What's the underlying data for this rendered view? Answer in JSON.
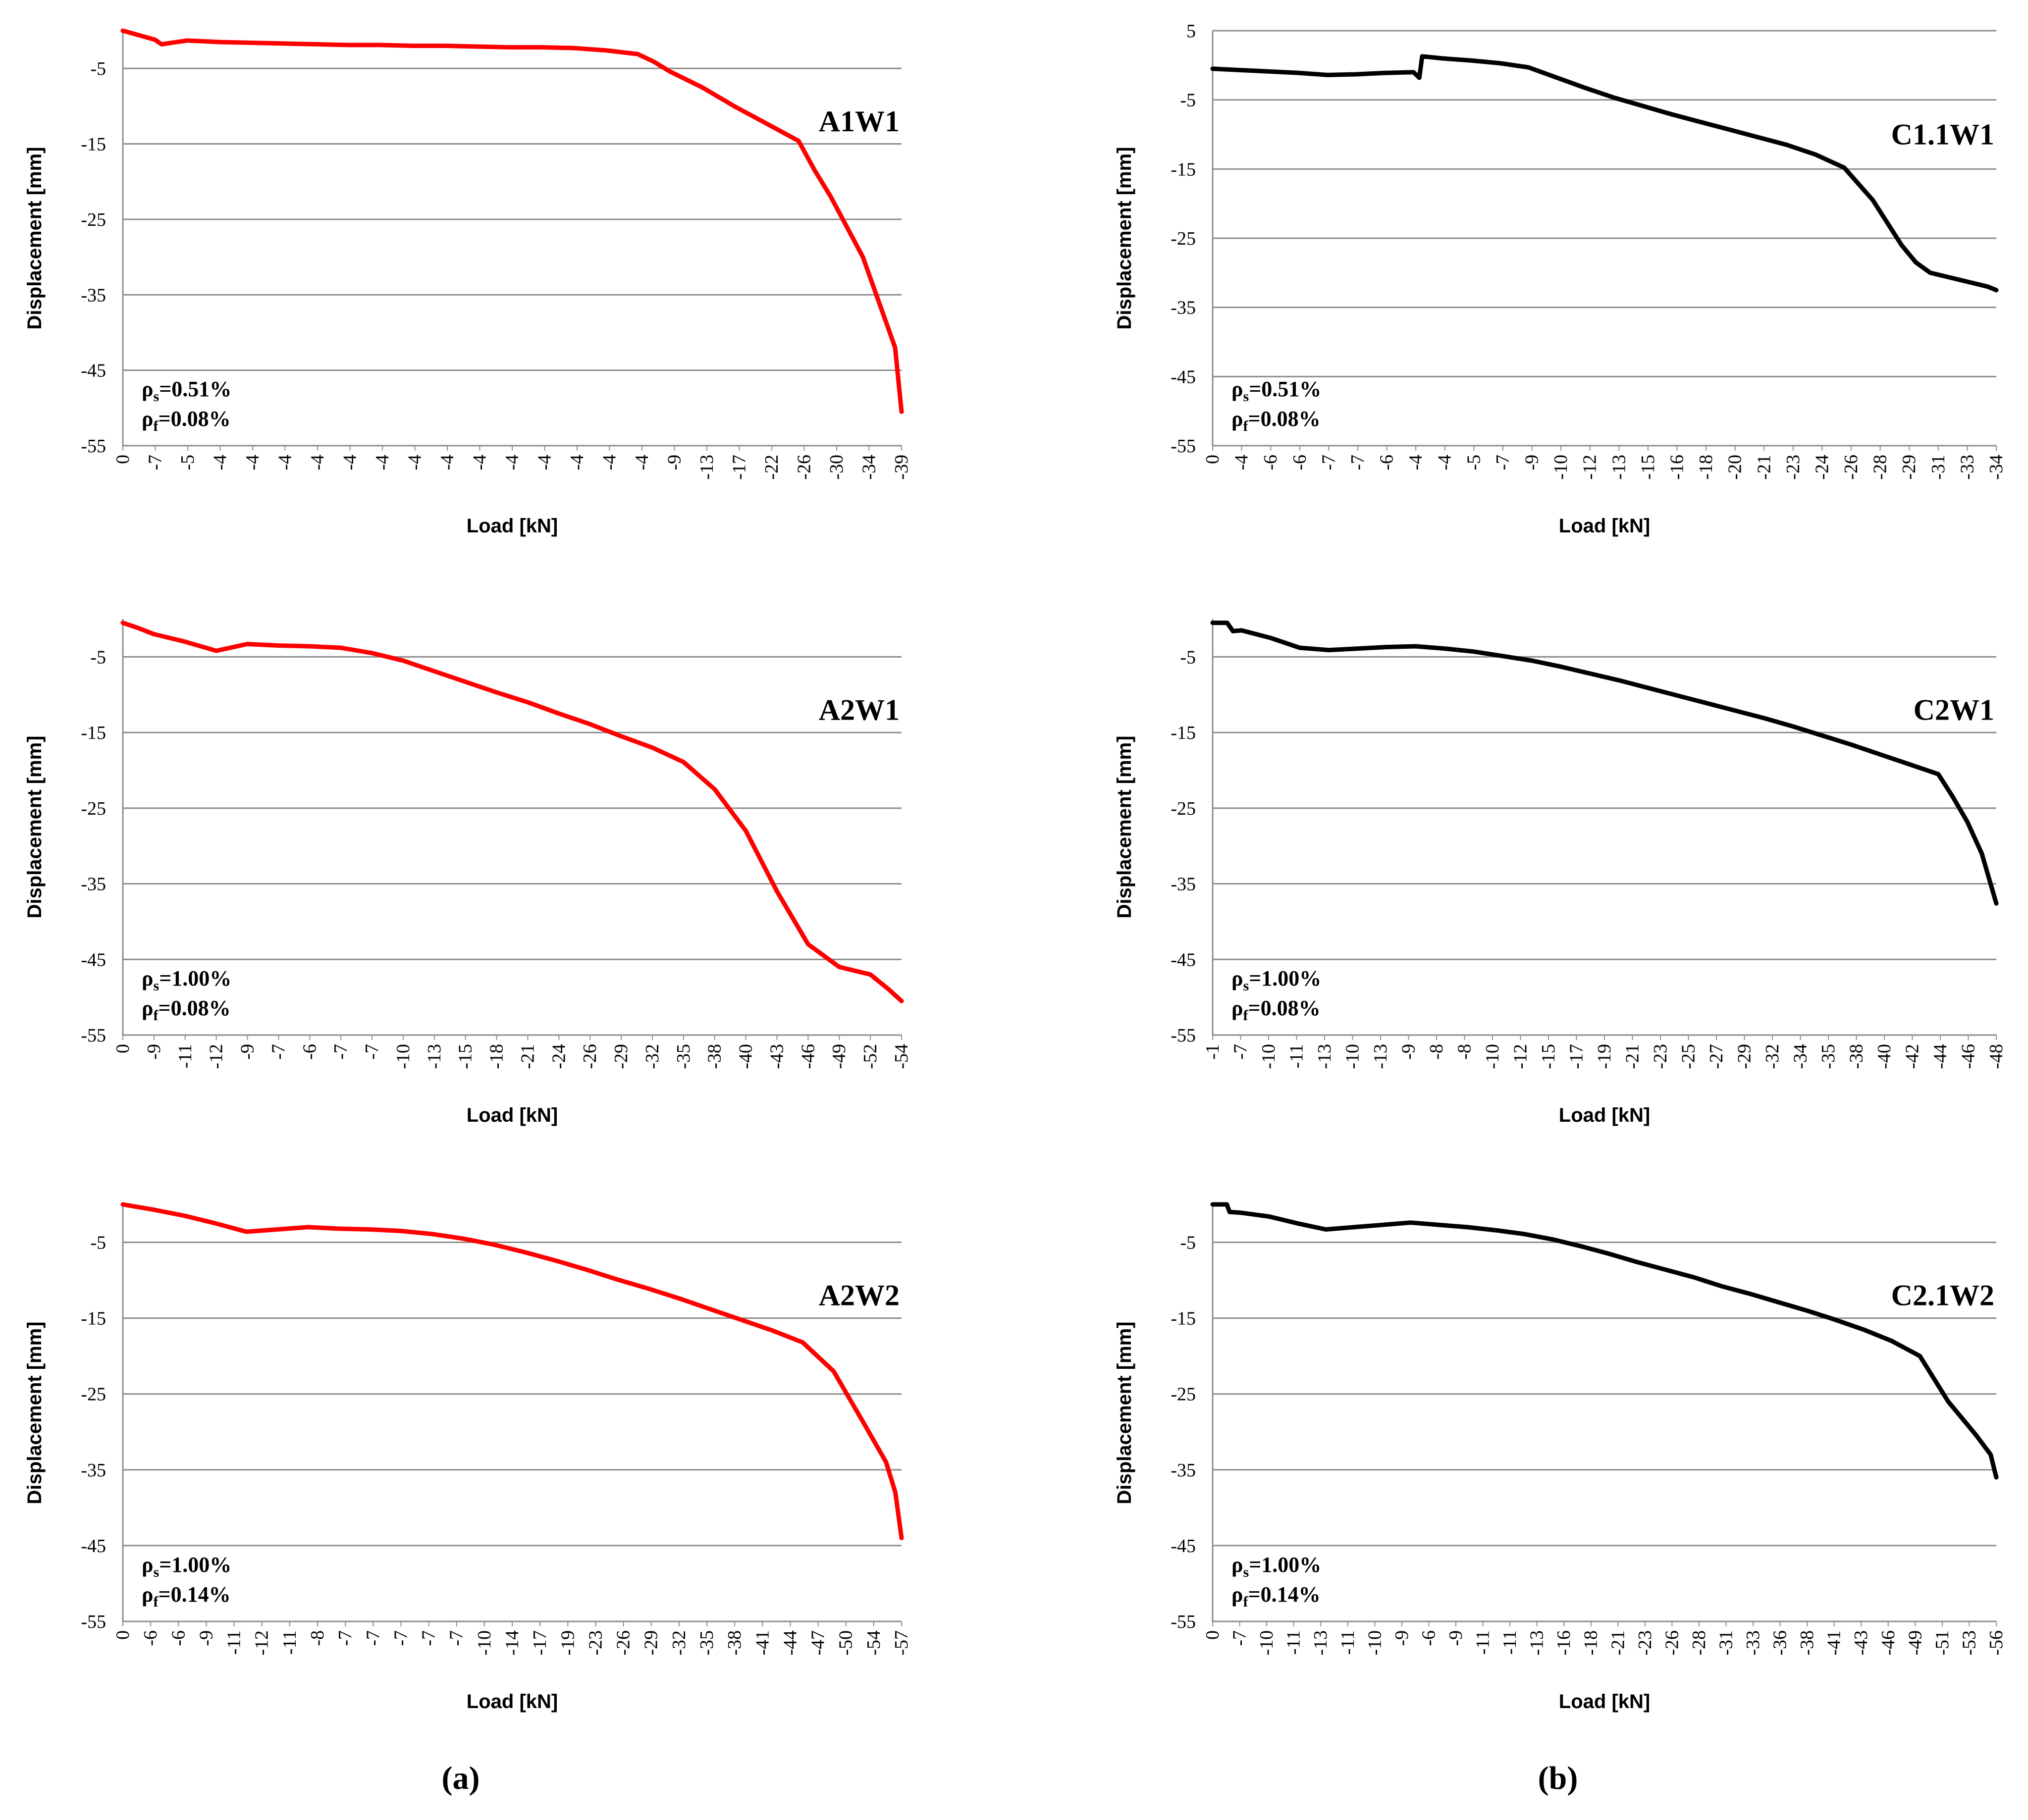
{
  "panel_labels": [
    "(a)",
    "(b)"
  ],
  "chart_data": [
    {
      "type": "line",
      "name": "A1W1",
      "color": "#ff0000",
      "xlabel": "Load [kN]",
      "ylabel": "Displacement [mm]",
      "ylim": [
        -55,
        0
      ],
      "yticks": [
        -5,
        -15,
        -25,
        -35,
        -45,
        -55
      ],
      "x_tick_labels": [
        "0",
        "-7",
        "-5",
        "-4",
        "-4",
        "-4",
        "-4",
        "-4",
        "-4",
        "-4",
        "-4",
        "-4",
        "-4",
        "-4",
        "-4",
        "-4",
        "-4",
        "-9",
        "-13",
        "-17",
        "-22",
        "-26",
        "-30",
        "-34",
        "-39"
      ],
      "rho_s": "0.51%",
      "rho_f": "0.08%",
      "series": [
        {
          "name": "A1W1",
          "x": [
            0,
            0.5,
            1,
            1.2,
            2,
            3,
            4,
            5,
            6,
            7,
            8,
            9,
            10,
            11,
            12,
            13,
            14,
            15,
            16,
            16.5,
            17,
            18,
            19,
            20,
            21,
            21.5,
            22,
            23,
            24,
            24.2
          ],
          "y": [
            0,
            -0.6,
            -1.2,
            -1.8,
            -1.3,
            -1.5,
            -1.6,
            -1.7,
            -1.8,
            -1.9,
            -1.9,
            -2.0,
            -2.0,
            -2.1,
            -2.2,
            -2.2,
            -2.3,
            -2.6,
            -3.1,
            -4.1,
            -5.4,
            -7.5,
            -10,
            -12.3,
            -14.6,
            -18.5,
            -22,
            -30,
            -42,
            -50.5
          ]
        }
      ]
    },
    {
      "type": "line",
      "name": "C1.1W1",
      "color": "#000000",
      "xlabel": "Load [kN]",
      "ylabel": "Displacement [mm]",
      "ylim": [
        -55,
        5
      ],
      "yticks": [
        5,
        -5,
        -15,
        -25,
        -35,
        -45,
        -55
      ],
      "x_tick_labels": [
        "0",
        "-4",
        "-6",
        "-6",
        "-7",
        "-7",
        "-6",
        "-4",
        "-4",
        "-5",
        "-7",
        "-9",
        "-10",
        "-12",
        "-13",
        "-15",
        "-16",
        "-18",
        "-20",
        "-21",
        "-23",
        "-24",
        "-26",
        "-28",
        "-29",
        "-31",
        "-33",
        "-34"
      ],
      "rho_s": "0.51%",
      "rho_f": "0.08%",
      "series": [
        {
          "name": "C1.1W1",
          "x": [
            0,
            1,
            2,
            3,
            4,
            5,
            6,
            7,
            7.2,
            7.3,
            8,
            9,
            10,
            11,
            12,
            13,
            14,
            15,
            16,
            17,
            18,
            19,
            20,
            21,
            22,
            23,
            24,
            24.5,
            25,
            26,
            27,
            27.3
          ],
          "y": [
            -0.5,
            -0.7,
            -0.9,
            -1.1,
            -1.4,
            -1.3,
            -1.1,
            -1.0,
            -1.8,
            1.3,
            1.0,
            0.7,
            0.3,
            -0.3,
            -1.8,
            -3.3,
            -4.7,
            -5.9,
            -7.1,
            -8.2,
            -9.3,
            -10.4,
            -11.5,
            -12.9,
            -14.8,
            -19.5,
            -26,
            -28.5,
            -30,
            -31,
            -32,
            -32.5
          ]
        }
      ]
    },
    {
      "type": "line",
      "name": "A2W1",
      "color": "#ff0000",
      "xlabel": "Load [kN]",
      "ylabel": "Displacement [mm]",
      "ylim": [
        -55,
        0
      ],
      "yticks": [
        -5,
        -15,
        -25,
        -35,
        -45,
        -55
      ],
      "x_tick_labels": [
        "0",
        "-9",
        "-11",
        "-12",
        "-9",
        "-7",
        "-6",
        "-7",
        "-7",
        "-10",
        "-13",
        "-15",
        "-18",
        "-21",
        "-24",
        "-26",
        "-29",
        "-32",
        "-35",
        "-38",
        "-40",
        "-43",
        "-46",
        "-49",
        "-52",
        "-54"
      ],
      "rho_s": "1.00%",
      "rho_f": "0.08%",
      "series": [
        {
          "name": "A2W1",
          "x": [
            0,
            0.5,
            1,
            2,
            3,
            4,
            5,
            6,
            7,
            8,
            9,
            10,
            11,
            12,
            13,
            14,
            15,
            16,
            17,
            18,
            19,
            20,
            21,
            22,
            23,
            24,
            24.6,
            25
          ],
          "y": [
            -0.5,
            -1.2,
            -2.0,
            -3.0,
            -4.2,
            -3.3,
            -3.5,
            -3.6,
            -3.8,
            -4.5,
            -5.5,
            -6.9,
            -8.3,
            -9.7,
            -11.0,
            -12.5,
            -13.9,
            -15.5,
            -17.0,
            -18.9,
            -22.5,
            -28,
            -36,
            -43,
            -46,
            -47,
            -49,
            -50.5
          ]
        }
      ]
    },
    {
      "type": "line",
      "name": "C2W1",
      "color": "#000000",
      "xlabel": "Load [kN]",
      "ylabel": "Displacement [mm]",
      "ylim": [
        -55,
        0
      ],
      "yticks": [
        -5,
        -15,
        -25,
        -35,
        -45,
        -55
      ],
      "x_tick_labels": [
        "-1",
        "-7",
        "-10",
        "-11",
        "-13",
        "-10",
        "-13",
        "-9",
        "-8",
        "-8",
        "-10",
        "-12",
        "-15",
        "-17",
        "-19",
        "-21",
        "-23",
        "-25",
        "-27",
        "-29",
        "-32",
        "-34",
        "-35",
        "-38",
        "-40",
        "-42",
        "-44",
        "-46",
        "-48"
      ],
      "rho_s": "1.00%",
      "rho_f": "0.08%",
      "series": [
        {
          "name": "C2W1",
          "x": [
            0,
            0.5,
            0.7,
            1,
            2,
            3,
            4,
            5,
            6,
            7,
            8,
            9,
            10,
            11,
            12,
            13,
            14,
            15,
            16,
            17,
            18,
            19,
            20,
            21,
            22,
            23,
            24,
            25,
            25.5,
            26,
            26.5,
            27
          ],
          "y": [
            -0.5,
            -0.5,
            -1.6,
            -1.5,
            -2.5,
            -3.8,
            -4.1,
            -3.9,
            -3.7,
            -3.6,
            -3.9,
            -4.3,
            -4.9,
            -5.5,
            -6.3,
            -7.2,
            -8.1,
            -9.1,
            -10.1,
            -11.1,
            -12.1,
            -13.1,
            -14.2,
            -15.4,
            -16.6,
            -17.9,
            -19.2,
            -20.5,
            -23.5,
            -26.8,
            -31,
            -37.6
          ]
        }
      ]
    },
    {
      "type": "line",
      "name": "A2W2",
      "color": "#ff0000",
      "xlabel": "Load [kN]",
      "ylabel": "Displacement [mm]",
      "ylim": [
        -55,
        0
      ],
      "yticks": [
        -5,
        -15,
        -25,
        -35,
        -45,
        -55
      ],
      "x_tick_labels": [
        "0",
        "-6",
        "-6",
        "-9",
        "-11",
        "-12",
        "-11",
        "-8",
        "-7",
        "-7",
        "-7",
        "-7",
        "-7",
        "-10",
        "-14",
        "-17",
        "-19",
        "-23",
        "-26",
        "-29",
        "-32",
        "-35",
        "-38",
        "-41",
        "-44",
        "-47",
        "-50",
        "-54",
        "-57"
      ],
      "rho_s": "1.00%",
      "rho_f": "0.14%",
      "series": [
        {
          "name": "A2W2",
          "x": [
            0,
            1,
            2,
            3,
            4,
            5,
            6,
            7,
            8,
            9,
            10,
            11,
            12,
            13,
            14,
            15,
            16,
            17,
            18,
            19,
            20,
            21,
            22,
            23,
            24,
            24.7,
            25,
            25.2
          ],
          "y": [
            0,
            -0.7,
            -1.5,
            -2.5,
            -3.6,
            -3.3,
            -3.0,
            -3.2,
            -3.3,
            -3.5,
            -3.9,
            -4.5,
            -5.3,
            -6.3,
            -7.4,
            -8.6,
            -9.9,
            -11.1,
            -12.4,
            -13.8,
            -15.2,
            -16.6,
            -18.2,
            -22,
            -29,
            -34,
            -38,
            -44
          ]
        }
      ]
    },
    {
      "type": "line",
      "name": "C2.1W2",
      "color": "#000000",
      "xlabel": "Load [kN]",
      "ylabel": "Displacement [mm]",
      "ylim": [
        -55,
        0
      ],
      "yticks": [
        -5,
        -15,
        -25,
        -35,
        -45,
        -55
      ],
      "x_tick_labels": [
        "0",
        "-7",
        "-10",
        "-11",
        "-13",
        "-11",
        "-10",
        "-9",
        "-6",
        "-9",
        "-11",
        "-11",
        "-13",
        "-16",
        "-18",
        "-21",
        "-23",
        "-26",
        "-28",
        "-31",
        "-33",
        "-36",
        "-38",
        "-41",
        "-43",
        "-46",
        "-49",
        "-51",
        "-53",
        "-56"
      ],
      "rho_s": "1.00%",
      "rho_f": "0.14%",
      "series": [
        {
          "name": "C2.1W2",
          "x": [
            0,
            0.5,
            0.6,
            1,
            2,
            3,
            4,
            5,
            6,
            7,
            8,
            9,
            10,
            11,
            12,
            13,
            14,
            15,
            16,
            17,
            18,
            19,
            20,
            21,
            22,
            23,
            24,
            25,
            26,
            27,
            27.5,
            27.7
          ],
          "y": [
            0,
            0,
            -1.0,
            -1.1,
            -1.6,
            -2.5,
            -3.3,
            -3.0,
            -2.7,
            -2.4,
            -2.7,
            -3.0,
            -3.4,
            -3.9,
            -4.6,
            -5.5,
            -6.5,
            -7.6,
            -8.6,
            -9.6,
            -10.8,
            -11.8,
            -12.9,
            -14.0,
            -15.2,
            -16.5,
            -18.0,
            -20.0,
            -26,
            -30.5,
            -33,
            -36
          ]
        }
      ]
    }
  ]
}
